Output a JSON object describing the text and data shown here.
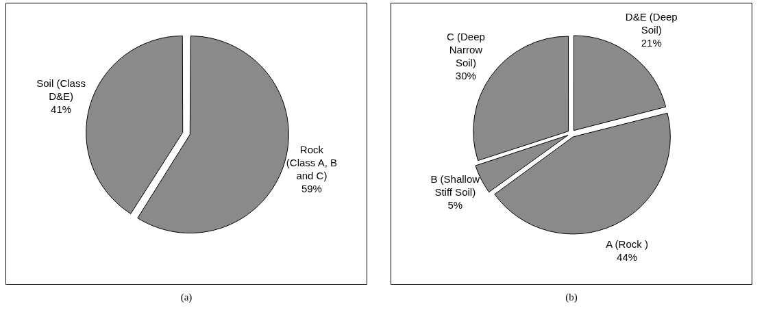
{
  "chart_data": [
    {
      "type": "pie",
      "categories": [
        "Rock (Class A, B and C)",
        "Soil (Class D&E)"
      ],
      "values": [
        59,
        41
      ],
      "value_labels": [
        "59%",
        "41%"
      ],
      "colors": [
        "#8a8a8a",
        "#8a8a8a"
      ],
      "annotations": [
        "(a)"
      ]
    },
    {
      "type": "pie",
      "categories": [
        "D&E (Deep Soil)",
        "A (Rock )",
        "B (Shallow Stiff Soil)",
        "C (Deep Narrow Soil)"
      ],
      "values": [
        21,
        44,
        5,
        30
      ],
      "value_labels": [
        "21%",
        "44%",
        "5%",
        "30%"
      ],
      "colors": [
        "#8a8a8a",
        "#8a8a8a",
        "#8a8a8a",
        "#8a8a8a"
      ],
      "annotations": [
        "(b)"
      ]
    }
  ]
}
